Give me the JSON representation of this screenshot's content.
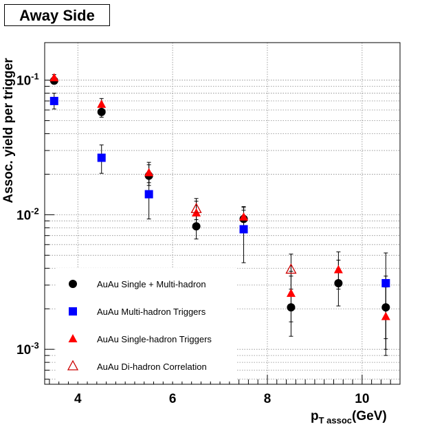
{
  "chart_data": {
    "type": "scatter",
    "title": "Away Side",
    "xlabel_main": "p",
    "xlabel_sub": "T assoc",
    "xlabel_unit": "(GeV)",
    "ylabel": "Assoc. yield per trigger",
    "xlim": [
      3.3,
      10.8
    ],
    "ylim": [
      0.00055,
      0.19
    ],
    "y_scale": "log",
    "grid": true,
    "legend_position": "bottom-left",
    "x_ticks": [
      {
        "value": 4,
        "label": "4"
      },
      {
        "value": 6,
        "label": "6"
      },
      {
        "value": 8,
        "label": "8"
      },
      {
        "value": 10,
        "label": "10"
      }
    ],
    "y_ticks": [
      {
        "value": 0.1,
        "base": "10",
        "exp": "-1"
      },
      {
        "value": 0.01,
        "base": "10",
        "exp": "-2"
      },
      {
        "value": 0.001,
        "base": "10",
        "exp": "-3"
      }
    ],
    "series": [
      {
        "name": "AuAu Single + Multi-hadron",
        "marker": "circle",
        "color": "#000000",
        "points": [
          {
            "x": 3.5,
            "y": 0.099,
            "lo": 0.094,
            "hi": 0.104
          },
          {
            "x": 4.5,
            "y": 0.058,
            "lo": 0.053,
            "hi": 0.064
          },
          {
            "x": 5.5,
            "y": 0.0195,
            "lo": 0.0165,
            "hi": 0.0235
          },
          {
            "x": 6.5,
            "y": 0.0082,
            "lo": 0.0066,
            "hi": 0.0101
          },
          {
            "x": 7.5,
            "y": 0.0093,
            "lo": 0.0079,
            "hi": 0.0108
          },
          {
            "x": 8.5,
            "y": 0.00205,
            "lo": 0.00125,
            "hi": 0.0035
          },
          {
            "x": 9.5,
            "y": 0.0031,
            "lo": 0.0021,
            "hi": 0.0046
          },
          {
            "x": 10.5,
            "y": 0.00205,
            "lo": 0.0012,
            "hi": 0.0035
          }
        ]
      },
      {
        "name": "AuAu Multi-hadron Triggers",
        "marker": "square",
        "color": "#0000ff",
        "points": [
          {
            "x": 3.5,
            "y": 0.07,
            "lo": 0.061,
            "hi": 0.08
          },
          {
            "x": 4.5,
            "y": 0.0265,
            "lo": 0.0203,
            "hi": 0.033
          },
          {
            "x": 5.5,
            "y": 0.0142,
            "lo": 0.0093,
            "hi": 0.02
          },
          {
            "x": 7.5,
            "y": 0.0078,
            "lo": 0.0044,
            "hi": 0.0115
          },
          {
            "x": 10.5,
            "y": 0.0031,
            "lo": 0.0009,
            "hi": 0.0052
          }
        ]
      },
      {
        "name": "AuAu Single-hadron Triggers",
        "marker": "triangle",
        "color": "#ff0000",
        "points": [
          {
            "x": 3.5,
            "y": 0.104,
            "lo": 0.098,
            "hi": 0.11
          },
          {
            "x": 4.5,
            "y": 0.066,
            "lo": 0.06,
            "hi": 0.073
          },
          {
            "x": 5.5,
            "y": 0.0205,
            "lo": 0.0173,
            "hi": 0.0245
          },
          {
            "x": 6.5,
            "y": 0.0103,
            "lo": 0.0083,
            "hi": 0.0126
          },
          {
            "x": 7.5,
            "y": 0.0096,
            "lo": 0.0081,
            "hi": 0.0113
          },
          {
            "x": 8.5,
            "y": 0.0026,
            "lo": 0.0016,
            "hi": 0.0038
          },
          {
            "x": 9.5,
            "y": 0.0039,
            "lo": 0.0028,
            "hi": 0.0053
          },
          {
            "x": 10.5,
            "y": 0.00175,
            "lo": 0.001,
            "hi": 0.0029
          }
        ]
      },
      {
        "name": "AuAu Di-hadron Correlation",
        "marker": "triangle-open",
        "color": "#cc0000",
        "points": [
          {
            "x": 6.5,
            "y": 0.011,
            "lo": 0.0092,
            "hi": 0.0132
          },
          {
            "x": 8.5,
            "y": 0.0039,
            "lo": 0.0028,
            "hi": 0.0051
          }
        ]
      }
    ]
  }
}
